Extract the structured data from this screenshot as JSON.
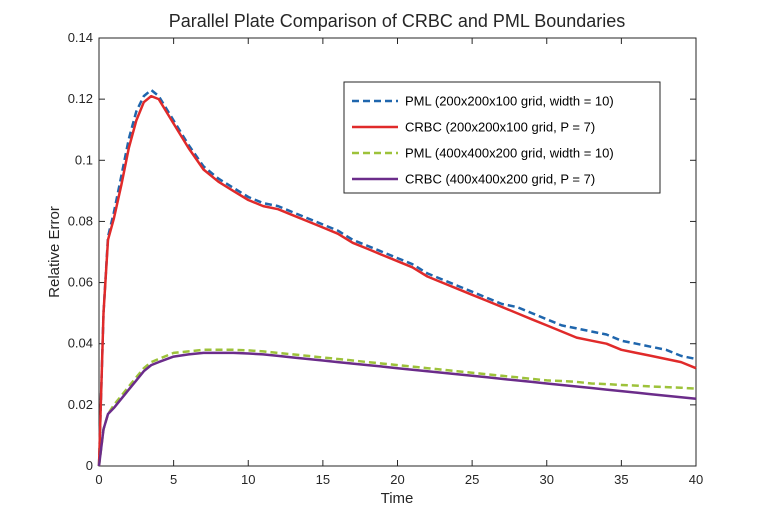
{
  "chart_data": {
    "type": "line",
    "title": "Parallel Plate Comparison of CRBC and PML Boundaries",
    "xlabel": "Time",
    "ylabel": "Relative Error",
    "xlim": [
      0,
      40
    ],
    "ylim": [
      0,
      0.14
    ],
    "xticks": [
      0,
      5,
      10,
      15,
      20,
      25,
      30,
      35,
      40
    ],
    "yticks": [
      0,
      0.02,
      0.04,
      0.06,
      0.08,
      0.1,
      0.12,
      0.14
    ],
    "xtick_labels": [
      "0",
      "5",
      "10",
      "15",
      "20",
      "25",
      "30",
      "35",
      "40"
    ],
    "ytick_labels": [
      "0",
      "0.02",
      "0.04",
      "0.06",
      "0.08",
      "0.1",
      "0.12",
      "0.14"
    ],
    "grid": false,
    "legend_position": "top-right",
    "series": [
      {
        "name": "PML (200x200x100 grid, width = 10)",
        "color": "#1f66ad",
        "style": "dashed",
        "x": [
          0,
          0.3,
          0.6,
          1,
          1.5,
          2,
          2.5,
          3,
          3.5,
          4,
          5,
          6,
          7,
          8,
          9,
          10,
          11,
          12,
          13,
          14,
          15,
          16,
          17,
          18,
          19,
          20,
          21,
          22,
          23,
          24,
          25,
          26,
          27,
          28,
          29,
          30,
          31,
          32,
          33,
          34,
          35,
          36,
          37,
          38,
          39,
          40
        ],
        "y": [
          0,
          0.05,
          0.075,
          0.083,
          0.095,
          0.107,
          0.116,
          0.121,
          0.123,
          0.121,
          0.113,
          0.105,
          0.098,
          0.094,
          0.091,
          0.088,
          0.086,
          0.085,
          0.083,
          0.081,
          0.079,
          0.077,
          0.074,
          0.072,
          0.07,
          0.068,
          0.066,
          0.063,
          0.061,
          0.059,
          0.057,
          0.055,
          0.053,
          0.052,
          0.05,
          0.048,
          0.046,
          0.045,
          0.044,
          0.043,
          0.041,
          0.04,
          0.039,
          0.038,
          0.036,
          0.035
        ]
      },
      {
        "name": "CRBC (200x200x100 grid, P = 7)",
        "color": "#e02a2a",
        "style": "solid",
        "x": [
          0,
          0.3,
          0.6,
          1,
          1.5,
          2,
          2.5,
          3,
          3.5,
          4,
          5,
          6,
          7,
          8,
          9,
          10,
          11,
          12,
          13,
          14,
          15,
          16,
          17,
          18,
          19,
          20,
          21,
          22,
          23,
          24,
          25,
          26,
          27,
          28,
          29,
          30,
          31,
          32,
          33,
          34,
          35,
          36,
          37,
          38,
          39,
          40
        ],
        "y": [
          0,
          0.05,
          0.074,
          0.081,
          0.092,
          0.104,
          0.113,
          0.119,
          0.121,
          0.12,
          0.112,
          0.104,
          0.097,
          0.093,
          0.09,
          0.087,
          0.085,
          0.084,
          0.082,
          0.08,
          0.078,
          0.076,
          0.073,
          0.071,
          0.069,
          0.067,
          0.065,
          0.062,
          0.06,
          0.058,
          0.056,
          0.054,
          0.052,
          0.05,
          0.048,
          0.046,
          0.044,
          0.042,
          0.041,
          0.04,
          0.038,
          0.037,
          0.036,
          0.035,
          0.034,
          0.032
        ]
      },
      {
        "name": "PML (400x400x200 grid, width = 10)",
        "color": "#9dc23a",
        "style": "dashed",
        "x": [
          0,
          0.3,
          0.6,
          1,
          1.5,
          2,
          2.5,
          3,
          3.5,
          4,
          5,
          6,
          7,
          8,
          9,
          10,
          11,
          12,
          13,
          14,
          15,
          16,
          17,
          18,
          19,
          20,
          21,
          22,
          23,
          24,
          25,
          26,
          27,
          28,
          29,
          30,
          31,
          32,
          33,
          34,
          35,
          36,
          37,
          38,
          39,
          40
        ],
        "y": [
          0,
          0.012,
          0.017,
          0.02,
          0.023,
          0.026,
          0.029,
          0.032,
          0.034,
          0.035,
          0.037,
          0.0375,
          0.038,
          0.038,
          0.038,
          0.0378,
          0.0375,
          0.037,
          0.0365,
          0.036,
          0.0355,
          0.035,
          0.0345,
          0.034,
          0.0335,
          0.033,
          0.0325,
          0.032,
          0.0315,
          0.031,
          0.0305,
          0.03,
          0.0295,
          0.029,
          0.0285,
          0.028,
          0.0278,
          0.0275,
          0.027,
          0.0268,
          0.0265,
          0.0263,
          0.026,
          0.0258,
          0.0256,
          0.0253
        ]
      },
      {
        "name": "CRBC (400x400x200 grid, P = 7)",
        "color": "#6b2c8a",
        "style": "solid",
        "x": [
          0,
          0.3,
          0.6,
          1,
          1.5,
          2,
          2.5,
          3,
          3.5,
          4,
          5,
          6,
          7,
          8,
          9,
          10,
          11,
          12,
          13,
          14,
          15,
          16,
          17,
          18,
          19,
          20,
          21,
          22,
          23,
          24,
          25,
          26,
          27,
          28,
          29,
          30,
          31,
          32,
          33,
          34,
          35,
          36,
          37,
          38,
          39,
          40
        ],
        "y": [
          0,
          0.012,
          0.017,
          0.019,
          0.022,
          0.025,
          0.028,
          0.031,
          0.033,
          0.034,
          0.0358,
          0.0365,
          0.037,
          0.037,
          0.037,
          0.0368,
          0.0365,
          0.036,
          0.0355,
          0.035,
          0.0345,
          0.034,
          0.0335,
          0.033,
          0.0325,
          0.032,
          0.0315,
          0.031,
          0.0305,
          0.03,
          0.0295,
          0.029,
          0.0285,
          0.028,
          0.0275,
          0.027,
          0.0265,
          0.026,
          0.0255,
          0.025,
          0.0245,
          0.024,
          0.0235,
          0.023,
          0.0225,
          0.022
        ]
      }
    ]
  }
}
